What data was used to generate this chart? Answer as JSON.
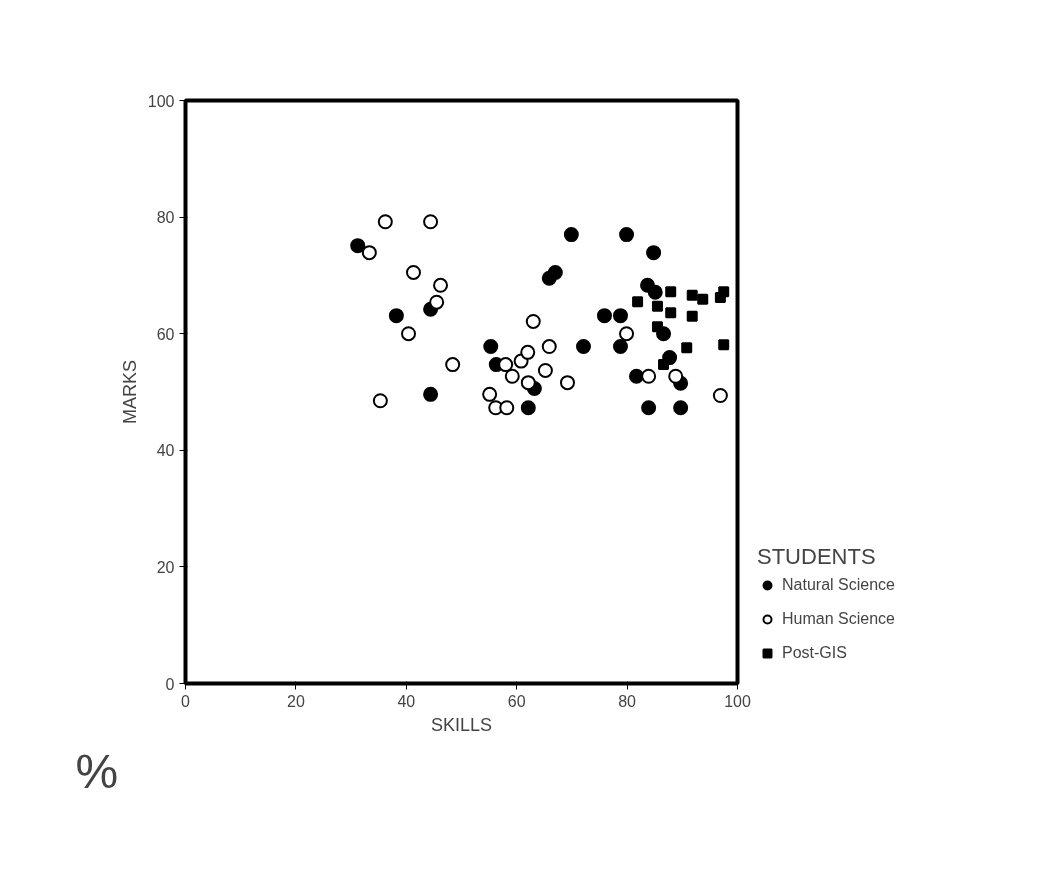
{
  "chart_data": {
    "type": "scatter",
    "xlabel": "SKILLS",
    "ylabel": "MARKS",
    "legend_title": "STUDENTS",
    "annotations": [
      "%"
    ],
    "xlim": [
      0,
      100
    ],
    "ylim": [
      0,
      100
    ],
    "xticks": [
      0,
      20,
      40,
      60,
      80,
      100
    ],
    "yticks": [
      0,
      20,
      40,
      60,
      80,
      100
    ],
    "grid": false,
    "legend": "right",
    "series": [
      {
        "name": "Natural Science",
        "color": "#000000",
        "marker": "circle",
        "x": [
          31.2,
          38.2,
          44.4,
          44.4,
          55.3,
          56.3,
          62.1,
          63.2,
          65.9,
          67.0,
          69.9,
          72.1,
          75.9,
          78.8,
          79.9,
          78.8,
          81.7,
          83.9,
          83.7,
          84.8,
          85.1,
          86.6,
          87.7,
          89.7,
          89.7
        ],
        "values": [
          75.1,
          63.1,
          64.2,
          49.6,
          57.8,
          54.7,
          47.3,
          50.6,
          69.5,
          70.5,
          77.0,
          57.8,
          63.1,
          63.1,
          77.0,
          57.8,
          52.7,
          47.3,
          68.3,
          73.9,
          67.1,
          60.0,
          55.9,
          51.5,
          47.3
        ]
      },
      {
        "name": "Human Science",
        "color": "#000000",
        "marker": "circle_open",
        "x": [
          36.2,
          44.4,
          33.3,
          41.3,
          46.2,
          45.5,
          40.4,
          48.4,
          35.3,
          55.1,
          56.2,
          58.2,
          58.0,
          59.2,
          60.8,
          62.0,
          63.0,
          62.1,
          65.2,
          65.9,
          69.2,
          79.9,
          83.9,
          88.8,
          96.9
        ],
        "values": [
          79.2,
          79.2,
          73.9,
          70.5,
          68.3,
          65.4,
          60.0,
          54.7,
          48.5,
          49.6,
          47.3,
          47.3,
          54.7,
          52.7,
          55.3,
          56.8,
          62.1,
          51.6,
          53.7,
          57.8,
          51.6,
          60.0,
          52.7,
          52.7,
          49.4
        ]
      },
      {
        "name": "Post-GIS",
        "color": "#000000",
        "marker": "square",
        "x": [
          81.9,
          87.9,
          91.8,
          93.7,
          96.9,
          97.5,
          85.5,
          87.9,
          91.8,
          85.5,
          90.8,
          97.5,
          86.6
        ],
        "values": [
          65.5,
          67.2,
          66.6,
          65.9,
          66.2,
          67.2,
          64.7,
          63.6,
          63.0,
          61.2,
          57.6,
          58.1,
          54.7
        ]
      }
    ]
  }
}
